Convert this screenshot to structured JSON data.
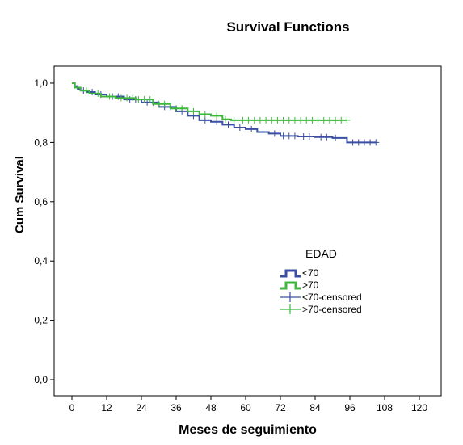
{
  "chart_data": {
    "type": "line",
    "title": "Survival Functions",
    "xlabel": "Meses de seguimiento",
    "ylabel": "Cum Survival",
    "xlim": [
      0,
      120
    ],
    "ylim": [
      0,
      1.0
    ],
    "xticks": [
      "0",
      "12",
      "24",
      "36",
      "48",
      "60",
      "72",
      "84",
      "96",
      "108",
      "120"
    ],
    "yticks": [
      "0,0",
      "0,2",
      "0,4",
      "0,6",
      "0,8",
      "1,0"
    ],
    "grid": false,
    "legend": {
      "title": "EDAD",
      "placement": "center-right",
      "entries": [
        "<70",
        ">70",
        "<70-censored",
        ">70-censored"
      ]
    },
    "series": [
      {
        "name": "<70",
        "color": "#3a4fa3",
        "step_points": [
          [
            0,
            1.0
          ],
          [
            1,
            0.99
          ],
          [
            2,
            0.98
          ],
          [
            3,
            0.975
          ],
          [
            5,
            0.97
          ],
          [
            8,
            0.962
          ],
          [
            12,
            0.955
          ],
          [
            18,
            0.945
          ],
          [
            24,
            0.935
          ],
          [
            30,
            0.92
          ],
          [
            36,
            0.905
          ],
          [
            40,
            0.89
          ],
          [
            44,
            0.875
          ],
          [
            48,
            0.87
          ],
          [
            52,
            0.86
          ],
          [
            56,
            0.85
          ],
          [
            60,
            0.845
          ],
          [
            64,
            0.835
          ],
          [
            68,
            0.83
          ],
          [
            72,
            0.822
          ],
          [
            78,
            0.82
          ],
          [
            84,
            0.818
          ],
          [
            90,
            0.815
          ],
          [
            95,
            0.8
          ],
          [
            105,
            0.8
          ]
        ],
        "censored": [
          4,
          7,
          10,
          14,
          16,
          20,
          22,
          26,
          28,
          32,
          34,
          38,
          42,
          46,
          50,
          54,
          58,
          62,
          66,
          70,
          73,
          75,
          77,
          80,
          82,
          86,
          88,
          91,
          97,
          99,
          101,
          103,
          105
        ]
      },
      {
        "name": ">70",
        "color": "#3db83d",
        "step_points": [
          [
            0,
            1.0
          ],
          [
            1,
            0.985
          ],
          [
            3,
            0.975
          ],
          [
            6,
            0.965
          ],
          [
            10,
            0.955
          ],
          [
            15,
            0.95
          ],
          [
            22,
            0.945
          ],
          [
            28,
            0.93
          ],
          [
            34,
            0.915
          ],
          [
            40,
            0.905
          ],
          [
            44,
            0.895
          ],
          [
            48,
            0.89
          ],
          [
            52,
            0.878
          ],
          [
            55,
            0.875
          ],
          [
            95,
            0.875
          ]
        ],
        "censored": [
          5,
          9,
          13,
          17,
          19,
          21,
          23,
          25,
          27,
          30,
          32,
          36,
          38,
          42,
          46,
          50,
          53,
          56,
          59,
          61,
          63,
          65,
          67,
          69,
          71,
          73,
          75,
          77,
          79,
          81,
          83,
          85,
          87,
          89,
          91,
          93,
          95
        ]
      }
    ]
  }
}
